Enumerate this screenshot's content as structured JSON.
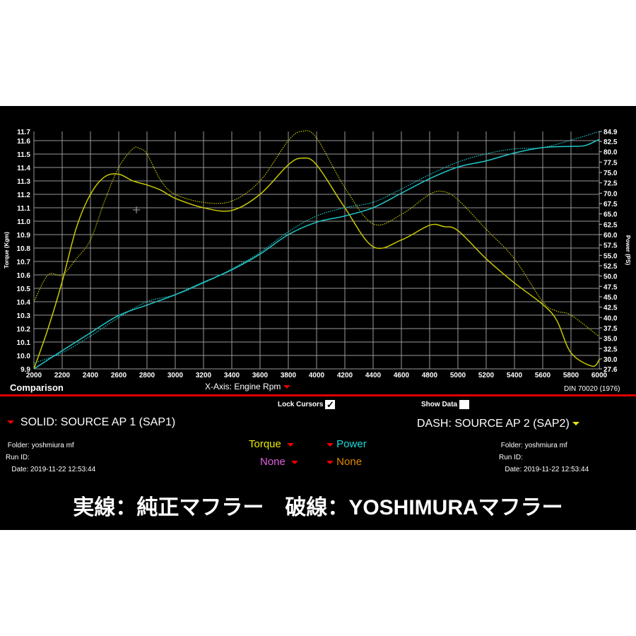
{
  "chart_data": {
    "type": "line",
    "xlabel": "X-Axis: Engine Rpm",
    "ylabel_left": "Torque (Kgm)",
    "ylabel_right": "Power (PS)",
    "xlim": [
      2000,
      6000
    ],
    "ylim_left": [
      9.9,
      11.7
    ],
    "ylim_right": [
      27.6,
      84.9
    ],
    "grid": true,
    "x_ticks": [
      "2000",
      "2200",
      "2400",
      "2600",
      "2800",
      "3000",
      "3200",
      "3400",
      "3600",
      "3800",
      "4000",
      "4200",
      "4400",
      "4600",
      "4800",
      "5000",
      "5200",
      "5400",
      "5600",
      "5800",
      "6000"
    ],
    "y_left_ticks": [
      "9.9",
      "10.0",
      "10.1",
      "10.2",
      "10.3",
      "10.4",
      "10.5",
      "10.6",
      "10.7",
      "10.8",
      "10.9",
      "11.0",
      "11.1",
      "11.2",
      "11.3",
      "11.4",
      "11.5",
      "11.6",
      "11.7"
    ],
    "y_right_ticks": [
      "27.6",
      "30.0",
      "32.5",
      "35.0",
      "37.5",
      "40.0",
      "42.5",
      "45.0",
      "47.5",
      "50.0",
      "52.5",
      "55.0",
      "57.5",
      "60.0",
      "62.5",
      "65.0",
      "67.5",
      "70.0",
      "72.5",
      "75.0",
      "77.5",
      "80.0",
      "82.5",
      "84.9"
    ],
    "series": [
      {
        "name": "Torque",
        "source": "SOLID",
        "axis": "left",
        "color": "#c8c800",
        "style": "solid",
        "x": [
          2000,
          2100,
          2200,
          2300,
          2400,
          2500,
          2600,
          2700,
          2800,
          2900,
          3000,
          3200,
          3400,
          3600,
          3800,
          3900,
          4000,
          4200,
          4400,
          4600,
          4800,
          4900,
          5000,
          5200,
          5400,
          5600,
          5700,
          5800,
          5950,
          6000
        ],
        "y": [
          9.9,
          10.2,
          10.55,
          10.95,
          11.2,
          11.33,
          11.35,
          11.3,
          11.27,
          11.23,
          11.17,
          11.1,
          11.08,
          11.2,
          11.42,
          11.47,
          11.42,
          11.1,
          10.81,
          10.86,
          10.97,
          10.96,
          10.93,
          10.72,
          10.54,
          10.38,
          10.26,
          10.02,
          9.92,
          9.97
        ]
      },
      {
        "name": "Torque",
        "source": "DASH",
        "axis": "left",
        "color": "#c8c800",
        "style": "dash",
        "x": [
          2000,
          2100,
          2200,
          2300,
          2400,
          2500,
          2600,
          2700,
          2750,
          2800,
          2900,
          3000,
          3200,
          3400,
          3600,
          3800,
          3900,
          4000,
          4200,
          4400,
          4600,
          4800,
          4900,
          5000,
          5200,
          5400,
          5600,
          5700,
          5800,
          6000
        ],
        "y": [
          10.4,
          10.6,
          10.6,
          10.72,
          10.86,
          11.15,
          11.4,
          11.54,
          11.54,
          11.5,
          11.3,
          11.2,
          11.14,
          11.15,
          11.3,
          11.6,
          11.67,
          11.62,
          11.25,
          10.98,
          11.05,
          11.2,
          11.22,
          11.16,
          10.94,
          10.72,
          10.4,
          10.33,
          10.3,
          10.14
        ]
      },
      {
        "name": "Power",
        "source": "SOLID",
        "axis": "right",
        "color": "#20c8c8",
        "style": "solid",
        "x": [
          2000,
          2200,
          2400,
          2600,
          2800,
          3000,
          3200,
          3400,
          3600,
          3800,
          4000,
          4200,
          4400,
          4600,
          4800,
          5000,
          5200,
          5400,
          5600,
          5800,
          5900,
          6000
        ],
        "y": [
          27.6,
          32,
          36.3,
          40.5,
          43,
          45.5,
          48.5,
          51.5,
          55.3,
          60,
          63,
          64.5,
          66.5,
          70,
          73.5,
          76.3,
          77.8,
          79.7,
          81,
          81.3,
          81.5,
          83
        ]
      },
      {
        "name": "Power",
        "source": "DASH",
        "axis": "right",
        "color": "#20c8c8",
        "style": "dash",
        "x": [
          2000,
          2200,
          2400,
          2600,
          2800,
          3000,
          3200,
          3400,
          3600,
          3800,
          4000,
          4200,
          4400,
          4600,
          4800,
          5000,
          5200,
          5400,
          5600,
          5800,
          6000
        ],
        "y": [
          29,
          31.5,
          35.5,
          40,
          43.8,
          45.5,
          48.3,
          51.7,
          55.7,
          60.7,
          64.5,
          66.5,
          67.8,
          71,
          74.5,
          77.5,
          79.5,
          80.7,
          81,
          82.8,
          84.9
        ]
      }
    ]
  },
  "header": {
    "comparison": "Comparison",
    "xaxis_label": "X-Axis: Engine Rpm",
    "standard": "DIN 70020 (1976)"
  },
  "controls": {
    "lock_cursors": "Lock Cursors",
    "lock_checked": "✓",
    "show_data": "Show Data"
  },
  "solid": {
    "title": "SOLID: SOURCE AP 1 (SAP1)",
    "folder_label": "Folder:",
    "folder": "yoshmiura mf",
    "run_label": "Run ID:",
    "date_label": "Date:",
    "date": "2019-11-22 12:53:44"
  },
  "dash": {
    "title": "DASH: SOURCE AP 2 (SAP2)",
    "folder_label": "Folder:",
    "folder": "yoshmiura mf",
    "run_label": "Run ID:",
    "date_label": "Date:",
    "date": "2019-11-22 12:53:44"
  },
  "selectors": {
    "torque": "Torque",
    "power": "Power",
    "none1": "None",
    "none2": "None",
    "torque_color": "#e8e800",
    "power_color": "#20d8d8",
    "none1_color": "#e060e0",
    "none2_color": "#e08800"
  },
  "caption": "実線：純正マフラー　破線：YOSHIMURAマフラー"
}
